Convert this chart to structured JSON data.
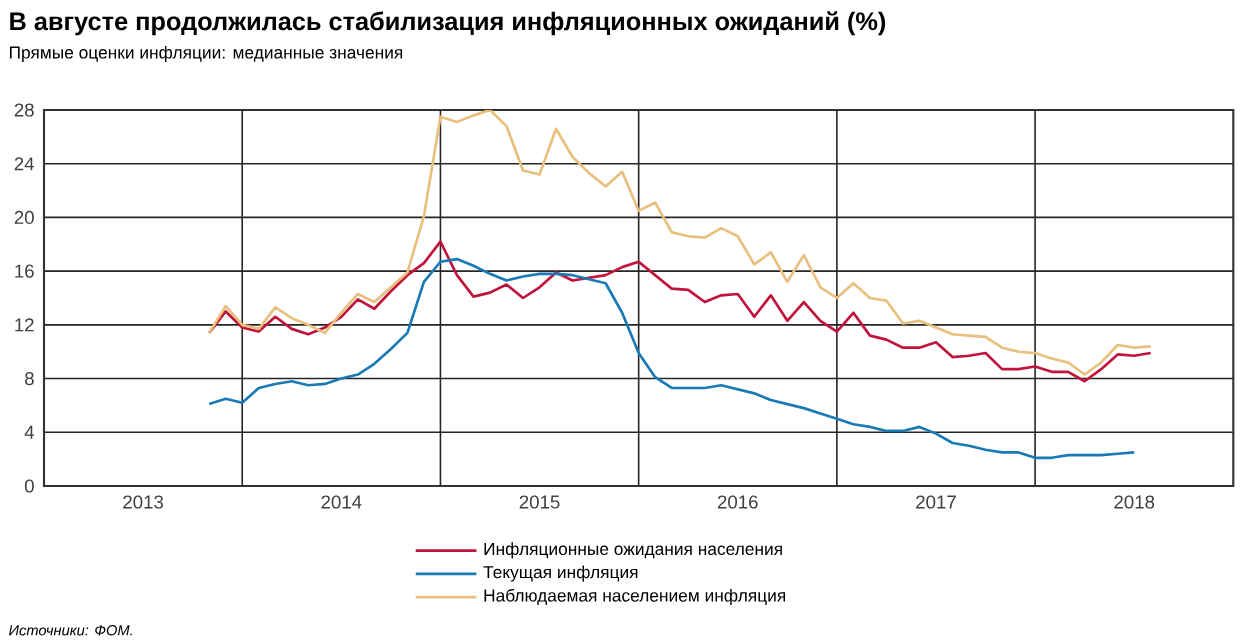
{
  "chart_data": {
    "type": "line",
    "title": "В августе продолжилась стабилизация инфляционных ожиданий (%)",
    "subtitle": "Прямые оценки инфляции: медианные значения",
    "annotations": [
      "Источники: ФОМ."
    ],
    "x": [
      "2013-11",
      "2013-12",
      "2014-01",
      "2014-02",
      "2014-03",
      "2014-04",
      "2014-05",
      "2014-06",
      "2014-07",
      "2014-08",
      "2014-09",
      "2014-10",
      "2014-11",
      "2014-12",
      "2015-01",
      "2015-02",
      "2015-03",
      "2015-04",
      "2015-05",
      "2015-06",
      "2015-07",
      "2015-08",
      "2015-09",
      "2015-10",
      "2015-11",
      "2015-12",
      "2016-01",
      "2016-02",
      "2016-03",
      "2016-04",
      "2016-05",
      "2016-06",
      "2016-07",
      "2016-08",
      "2016-09",
      "2016-10",
      "2016-11",
      "2016-12",
      "2017-01",
      "2017-02",
      "2017-03",
      "2017-04",
      "2017-05",
      "2017-06",
      "2017-07",
      "2017-08",
      "2017-09",
      "2017-10",
      "2017-11",
      "2017-12",
      "2018-01",
      "2018-02",
      "2018-03",
      "2018-04",
      "2018-05",
      "2018-06",
      "2018-07",
      "2018-08"
    ],
    "series": [
      {
        "name": "Инфляционные ожидания населения",
        "color": "#c0143c",
        "values": [
          11.4,
          13.0,
          11.8,
          11.5,
          12.6,
          11.7,
          11.3,
          11.8,
          12.6,
          13.9,
          13.2,
          14.5,
          15.7,
          16.6,
          18.2,
          15.7,
          14.1,
          14.4,
          15.0,
          14.0,
          14.8,
          15.9,
          15.3,
          15.5,
          15.7,
          16.3,
          16.7,
          15.7,
          14.7,
          14.6,
          13.7,
          14.2,
          14.3,
          12.6,
          14.2,
          12.3,
          13.7,
          12.3,
          11.5,
          12.9,
          11.2,
          10.9,
          10.3,
          10.3,
          10.7,
          9.6,
          9.7,
          9.9,
          8.7,
          8.7,
          8.9,
          8.5,
          8.5,
          7.8,
          8.7,
          9.8,
          9.7,
          9.9
        ]
      },
      {
        "name": "Текущая инфляция",
        "color": "#1a7ab5",
        "values": [
          6.1,
          6.5,
          6.2,
          7.3,
          7.6,
          7.8,
          7.5,
          7.6,
          8.0,
          8.3,
          9.1,
          10.2,
          11.4,
          15.2,
          16.7,
          16.9,
          16.4,
          15.8,
          15.3,
          15.6,
          15.8,
          15.8,
          15.7,
          15.4,
          15.1,
          12.9,
          9.9,
          8.1,
          7.3,
          7.3,
          7.3,
          7.5,
          7.2,
          6.9,
          6.4,
          6.1,
          5.8,
          5.4,
          5.0,
          4.6,
          4.4,
          4.1,
          4.1,
          4.4,
          3.9,
          3.2,
          3.0,
          2.7,
          2.5,
          2.5,
          2.1,
          2.1,
          2.3,
          2.3,
          2.3,
          2.4,
          2.5,
          null
        ]
      },
      {
        "name": "Наблюдаемая населением инфляция",
        "color": "#e8bf7d",
        "values": [
          11.4,
          13.4,
          12.0,
          11.7,
          13.3,
          12.5,
          12.0,
          11.4,
          12.9,
          14.3,
          13.7,
          14.8,
          15.9,
          20.1,
          27.5,
          27.1,
          27.6,
          28.0,
          26.8,
          23.5,
          23.2,
          26.6,
          24.5,
          23.3,
          22.3,
          23.4,
          20.5,
          21.1,
          18.9,
          18.6,
          18.5,
          19.2,
          18.6,
          16.5,
          17.4,
          15.2,
          17.2,
          14.8,
          14.0,
          15.1,
          14.0,
          13.8,
          12.1,
          12.3,
          11.8,
          11.3,
          11.2,
          11.1,
          10.3,
          10.0,
          9.9,
          9.5,
          9.2,
          8.3,
          9.2,
          10.5,
          10.3,
          10.4
        ]
      }
    ],
    "xlim": [
      "2013-01",
      "2019-01"
    ],
    "xticks": [
      {
        "value": "2013-07",
        "label": "2013"
      },
      {
        "value": "2014-07",
        "label": "2014"
      },
      {
        "value": "2015-07",
        "label": "2015"
      },
      {
        "value": "2016-07",
        "label": "2016"
      },
      {
        "value": "2017-07",
        "label": "2017"
      },
      {
        "value": "2018-07",
        "label": "2018"
      },
      {
        "value": "2014-01",
        "label": null
      },
      {
        "value": "2015-01",
        "label": null
      },
      {
        "value": "2016-01",
        "label": null
      },
      {
        "value": "2017-01",
        "label": null
      },
      {
        "value": "2018-01",
        "label": null
      }
    ],
    "ylim": [
      0,
      28
    ],
    "yticks": [
      0,
      4,
      8,
      12,
      16,
      20,
      24,
      28
    ],
    "grid": true,
    "legend": "bottom"
  }
}
